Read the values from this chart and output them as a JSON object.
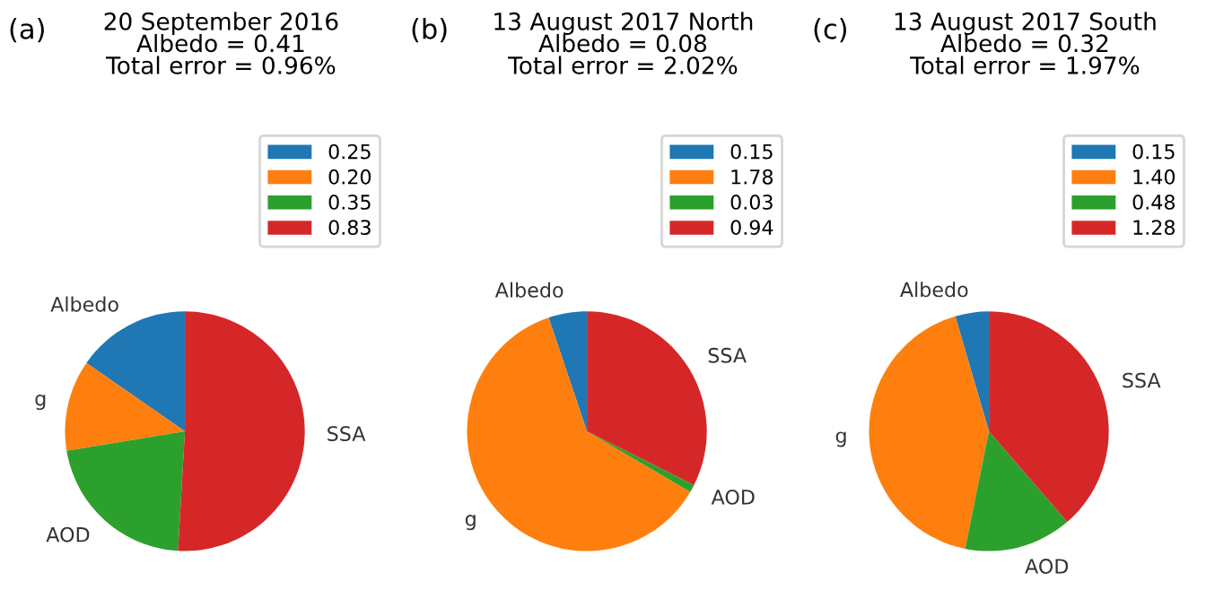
{
  "chart_data": [
    {
      "type": "pie",
      "title": "20 September 2016\nAlbedo = 0.41\nTotal error = 0.96%",
      "annotations": [
        "(a)",
        {
          "text": "Albedo",
          "x": "0.25"
        },
        {
          "text": "g",
          "x": "0.20"
        },
        {
          "text": "AOD",
          "x": "0.35"
        },
        {
          "text": "SSA",
          "x": "0.83"
        }
      ],
      "categories": [
        "0.25",
        "0.20",
        "0.35",
        "0.83"
      ],
      "values": [
        0.25,
        0.2,
        0.35,
        0.83
      ],
      "colors": [
        "#1f77b4",
        "#ff7f0e",
        "#2ca02c",
        "#d62728"
      ],
      "legend": "top right"
    },
    {
      "type": "pie",
      "title": "13 August 2017 North\nAlbedo = 0.08\nTotal error = 2.02%",
      "annotations": [
        "(b)",
        {
          "text": "Albedo",
          "x": "0.15"
        },
        {
          "text": "g",
          "x": "1.78"
        },
        {
          "text": "AOD",
          "x": "0.03"
        },
        {
          "text": "SSA",
          "x": "0.94"
        }
      ],
      "categories": [
        "0.15",
        "1.78",
        "0.03",
        "0.94"
      ],
      "values": [
        0.15,
        1.78,
        0.03,
        0.94
      ],
      "colors": [
        "#1f77b4",
        "#ff7f0e",
        "#2ca02c",
        "#d62728"
      ],
      "legend": "top right"
    },
    {
      "type": "pie",
      "title": "13 August 2017 South\nAlbedo = 0.32\nTotal error = 1.97%",
      "annotations": [
        "(c)",
        {
          "text": "Albedo",
          "x": "0.15"
        },
        {
          "text": "g",
          "x": "1.40"
        },
        {
          "text": "AOD",
          "x": "0.48"
        },
        {
          "text": "SSA",
          "x": "1.28"
        }
      ],
      "categories": [
        "0.15",
        "1.40",
        "0.48",
        "1.28"
      ],
      "values": [
        0.15,
        1.4,
        0.48,
        1.28
      ],
      "colors": [
        "#1f77b4",
        "#ff7f0e",
        "#2ca02c",
        "#d62728"
      ],
      "legend": "top right"
    }
  ]
}
